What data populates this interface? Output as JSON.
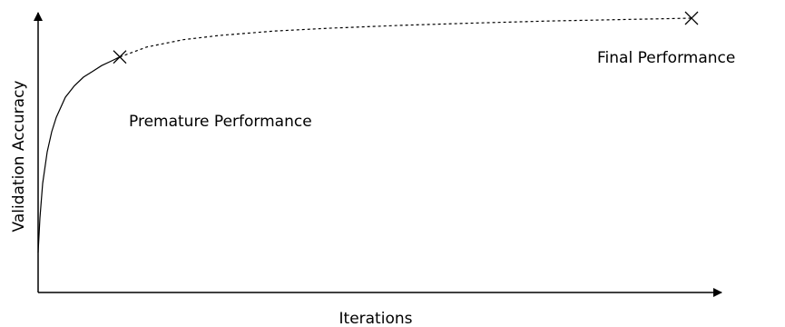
{
  "chart_data": {
    "type": "line",
    "xlabel": "Iterations",
    "ylabel": "Validation Accuracy",
    "grid": false,
    "series": [
      {
        "style": "solid",
        "x": [
          0,
          2,
          5,
          10,
          15,
          20,
          30,
          40,
          50,
          60,
          70,
          80,
          90
        ],
        "y": [
          0.18,
          0.3,
          0.42,
          0.53,
          0.6,
          0.65,
          0.72,
          0.76,
          0.79,
          0.81,
          0.83,
          0.845,
          0.86
        ]
      },
      {
        "style": "dashed",
        "x": [
          90,
          120,
          160,
          200,
          260,
          320,
          400,
          480,
          560,
          640,
          720
        ],
        "y": [
          0.86,
          0.895,
          0.92,
          0.935,
          0.95,
          0.96,
          0.97,
          0.978,
          0.985,
          0.99,
          0.995
        ]
      }
    ],
    "points": [
      {
        "label": "Premature Performance",
        "x": 90,
        "y": 0.86,
        "marker": "x"
      },
      {
        "label": "Final Performance",
        "x": 720,
        "y": 0.995,
        "marker": "x"
      }
    ],
    "stroke_color": "#000000"
  }
}
